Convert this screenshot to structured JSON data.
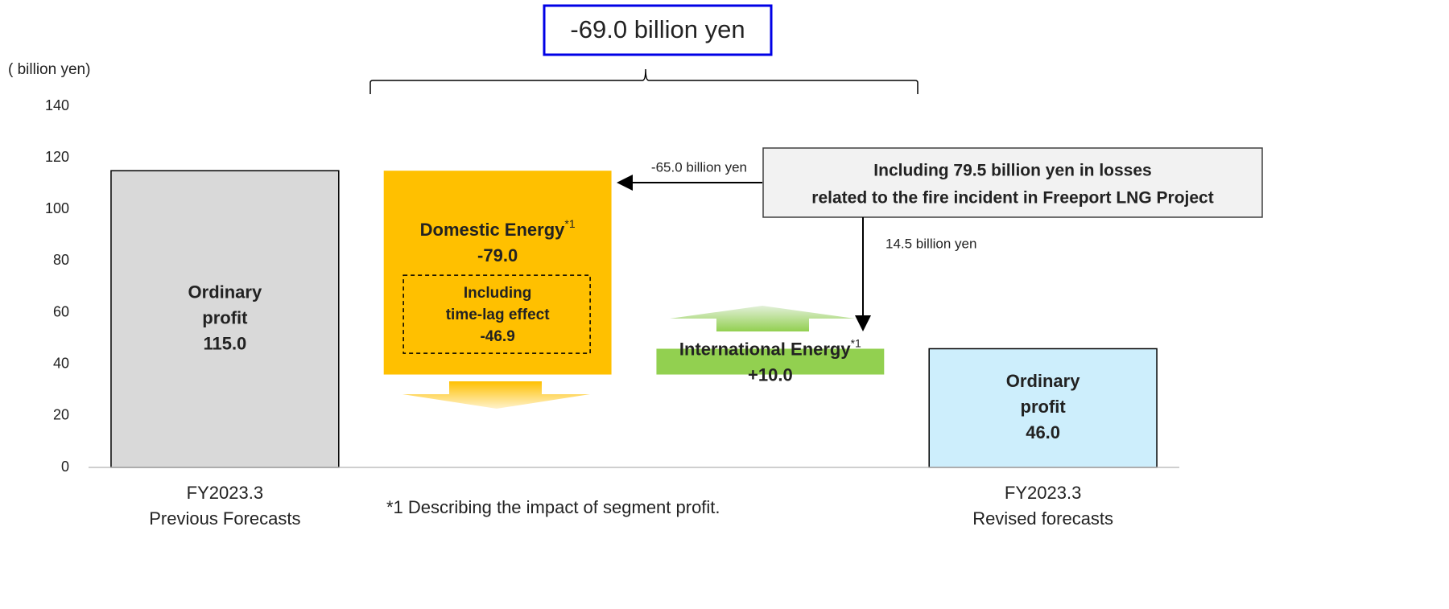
{
  "chart_data": {
    "type": "waterfall",
    "unit_label": "( billion yen)",
    "categories": [
      [
        "FY2023.3",
        "Previous Forecasts"
      ],
      null,
      null,
      [
        "FY2023.3",
        "Revised forecasts"
      ]
    ],
    "labels": [
      [
        "Ordinary",
        "profit"
      ],
      [
        "Domestic Energy"
      ],
      [
        "International Energy"
      ],
      [
        "Ordinary",
        "profit"
      ]
    ],
    "footnote_mark": "*1",
    "label_marks": [
      false,
      true,
      true,
      false
    ],
    "measures": [
      "absolute",
      "relative",
      "relative",
      "absolute"
    ],
    "values": [
      115.0,
      -79.0,
      10.0,
      46.0
    ],
    "value_labels": [
      "115.0",
      "-79.0",
      "+10.0",
      "46.0"
    ],
    "colors": [
      "#d9d9d9",
      "#ffc000",
      "#92d050",
      "#cdeefc"
    ],
    "ylim": [
      0,
      140
    ],
    "yticks": [
      0,
      20,
      40,
      60,
      80,
      100,
      120,
      140
    ],
    "grid": false,
    "inner_note": {
      "lines": [
        "Including",
        "time-lag effect"
      ],
      "value": -46.9
    },
    "total_change": "-69.0 billion yen",
    "callout": [
      "Including 79.5 billion yen in losses",
      "related to the fire incident in Freeport LNG Project"
    ],
    "callout_left": "-65.0 billion yen",
    "callout_down": "14.5 billion yen",
    "footnote": "*1 Describing the impact of segment profit."
  }
}
